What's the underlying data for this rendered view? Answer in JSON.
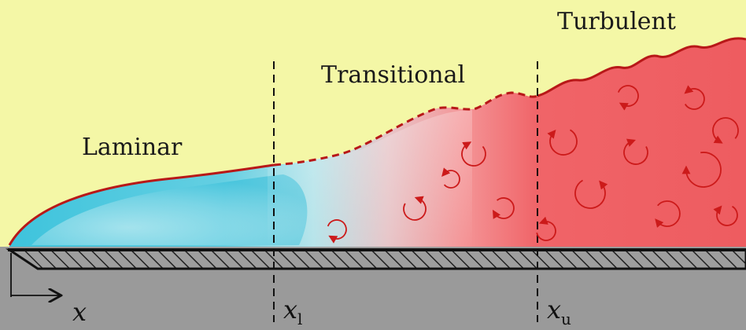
{
  "regions": {
    "laminar": "Laminar",
    "transitional": "Transitional",
    "turbulent": "Turbulent"
  },
  "axis": {
    "x_symbol": "x",
    "lower_bound_symbol": "x",
    "lower_bound_subscript": "l",
    "upper_bound_symbol": "x",
    "upper_bound_subscript": "u"
  },
  "colors": {
    "background": "#f4f7a6",
    "laminar": "#3cc3dc",
    "turbulent": "#f06468",
    "wall": "#9a9a9a",
    "edge": "#c01818",
    "vortex": "#cc1a1a"
  },
  "icons": {
    "vortex": "circular-arrow-icon",
    "axis_arrow": "arrow-right-icon"
  }
}
